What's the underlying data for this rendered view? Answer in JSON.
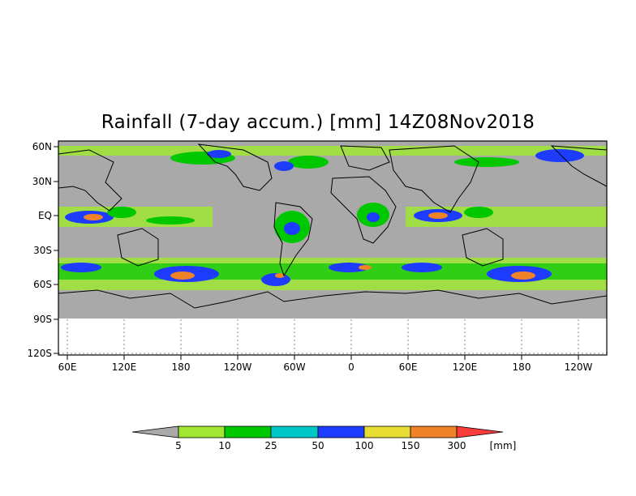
{
  "title": "Rainfall (7-day accum.) [mm] 14Z08Nov2018",
  "map": {
    "lat_labels": [
      "60N",
      "30N",
      "EQ",
      "30S",
      "60S",
      "90S",
      "120S"
    ],
    "lon_labels": [
      "60E",
      "120E",
      "180",
      "120W",
      "60W",
      "0",
      "60E",
      "120E",
      "180",
      "120W"
    ],
    "land_color": "#a9a9a9",
    "coast_color": "#000000"
  },
  "colorbar": {
    "unit": "[mm]",
    "thresholds": [
      "5",
      "10",
      "25",
      "50",
      "100",
      "150",
      "300"
    ],
    "colors": [
      "#a9a9a9",
      "#a0e632",
      "#00c800",
      "#00c8c8",
      "#1e3cff",
      "#e6dc32",
      "#f08228",
      "#fa3c3c"
    ]
  }
}
